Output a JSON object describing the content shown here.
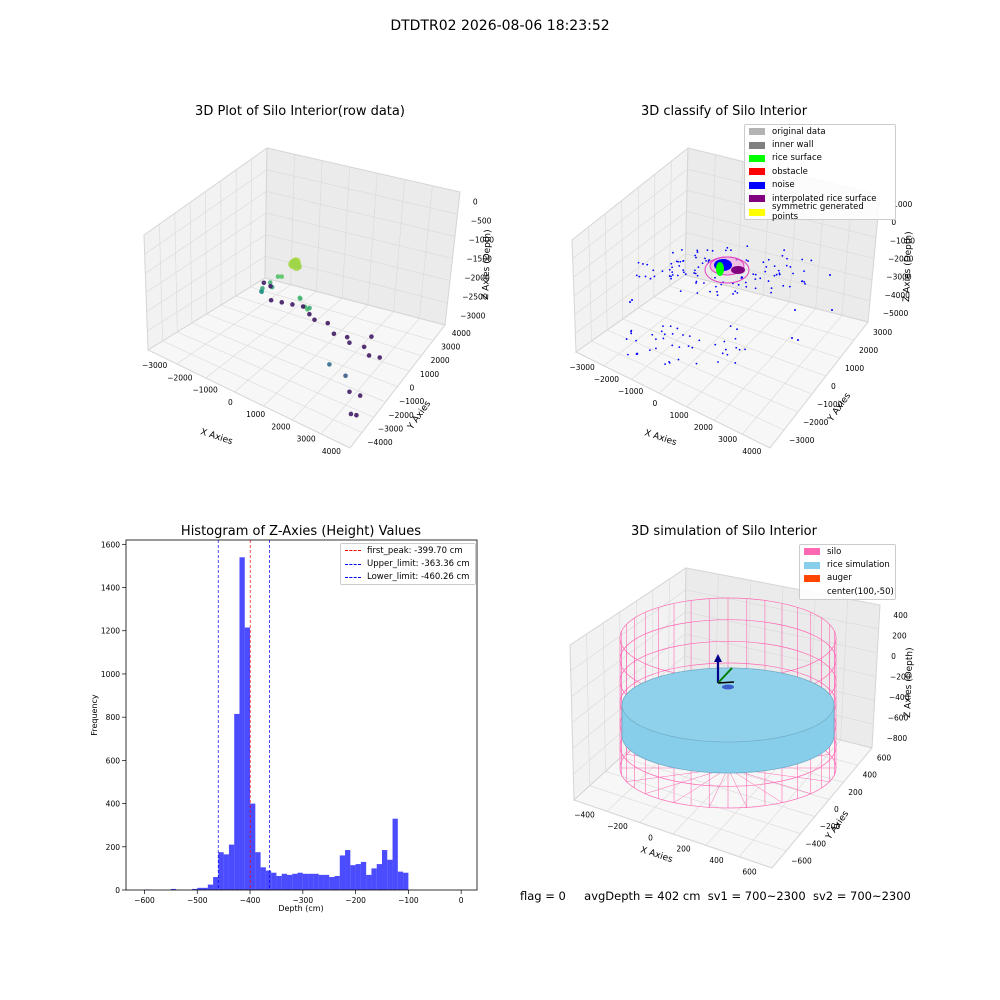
{
  "suptitle": "DTDTR02 2026-08-06 18:23:52",
  "status": {
    "flag": "flag = 0",
    "avg": "avgDepth = 402 cm",
    "sv1": "sv1 = 700~2300",
    "sv2": "sv2 = 700~2300"
  },
  "chart_data": [
    {
      "type": "scatter",
      "title": "3D Plot of Silo Interior(row data)",
      "xlabel": "X Axies",
      "ylabel": "Y Axies",
      "zlabel": "Z Axies (Depth)",
      "xticks": [
        "−3000",
        "−2000",
        "−1000",
        "0",
        "1000",
        "2000",
        "3000",
        "4000"
      ],
      "yticks": [
        "−4000",
        "−3000",
        "−2000",
        "−1000",
        "0",
        "1000",
        "2000",
        "3000",
        "4000"
      ],
      "zticks": [
        "−3000",
        "−2500",
        "−2000",
        "−1500",
        "−1000",
        "−500",
        "0"
      ],
      "xlim": [
        -3500,
        4200
      ],
      "ylim": [
        -4200,
        4200
      ],
      "zlim": [
        -3300,
        100
      ],
      "colormap": "viridis (by depth)",
      "series_note": "points read approximately from the projection",
      "points": [
        {
          "x": 200,
          "y": 300,
          "z": -300
        },
        {
          "x": 150,
          "y": 400,
          "z": -350
        },
        {
          "x": 250,
          "y": 350,
          "z": -380
        },
        {
          "x": 100,
          "y": 200,
          "z": -400
        },
        {
          "x": 300,
          "y": 250,
          "z": -420
        },
        {
          "x": -200,
          "y": 600,
          "z": -800
        },
        {
          "x": -400,
          "y": 500,
          "z": -900
        },
        {
          "x": -600,
          "y": 700,
          "z": -1100
        },
        {
          "x": -800,
          "y": 900,
          "z": -1300
        },
        {
          "x": -900,
          "y": 800,
          "z": -1450
        },
        {
          "x": -1000,
          "y": 600,
          "z": -1550
        },
        {
          "x": -700,
          "y": 400,
          "z": -1350
        },
        {
          "x": 800,
          "y": 1200,
          "z": -900
        },
        {
          "x": 1100,
          "y": 1400,
          "z": -1000
        },
        {
          "x": 1300,
          "y": 1600,
          "z": -950
        },
        {
          "x": 600,
          "y": 800,
          "z": -1100
        },
        {
          "x": 1000,
          "y": 900,
          "z": -1200
        },
        {
          "x": 2300,
          "y": 2000,
          "z": -2100
        },
        {
          "x": 2800,
          "y": 1800,
          "z": -2300
        },
        {
          "x": 3400,
          "y": 2600,
          "z": -3000
        },
        {
          "x": 3500,
          "y": 2400,
          "z": -3050
        },
        {
          "x": 2600,
          "y": 1200,
          "z": -3000
        },
        {
          "x": 2900,
          "y": 1000,
          "z": -3050
        },
        {
          "x": -3000,
          "y": -3200,
          "z": -3000
        },
        {
          "x": -2800,
          "y": -3300,
          "z": -3050
        },
        {
          "x": -2300,
          "y": -2400,
          "z": -3050
        },
        {
          "x": -2000,
          "y": -2600,
          "z": -3050
        },
        {
          "x": -1700,
          "y": -2800,
          "z": -3050
        },
        {
          "x": -1400,
          "y": -3000,
          "z": -3050
        },
        {
          "x": -1000,
          "y": -2700,
          "z": -3050
        },
        {
          "x": -700,
          "y": -2500,
          "z": -3050
        },
        {
          "x": -300,
          "y": -2700,
          "z": -3050
        },
        {
          "x": 200,
          "y": -2200,
          "z": -3050
        },
        {
          "x": 600,
          "y": -2400,
          "z": -3050
        },
        {
          "x": 900,
          "y": -2000,
          "z": -3000
        },
        {
          "x": 1300,
          "y": -2300,
          "z": -3050
        },
        {
          "x": 1700,
          "y": -1900,
          "z": -3050
        },
        {
          "x": 2000,
          "y": -2100,
          "z": -3050
        },
        {
          "x": 1100,
          "y": -3200,
          "z": -3050
        }
      ]
    },
    {
      "type": "scatter",
      "title": "3D classify of Silo Interior",
      "xlabel": "X Axies",
      "ylabel": "Y Axies",
      "zlabel": "Z Axies (Depth)",
      "xticks": [
        "−3000",
        "−2000",
        "−1000",
        "0",
        "1000",
        "2000",
        "3000",
        "4000"
      ],
      "yticks": [
        "−3000",
        "−2000",
        "−1000",
        "0",
        "1000",
        "2000",
        "3000"
      ],
      "zticks": [
        "−5000",
        "−4000",
        "−3000",
        "−2000",
        "−1000",
        "0",
        "1000"
      ],
      "xlim": [
        -3500,
        4200
      ],
      "ylim": [
        -3500,
        3500
      ],
      "zlim": [
        -5200,
        1300
      ],
      "legend_position": "top-right",
      "series": [
        {
          "name": "original data",
          "color": "#b3b3b3"
        },
        {
          "name": "inner wall",
          "color": "#808080"
        },
        {
          "name": "rice surface",
          "color": "#00ff00"
        },
        {
          "name": "obstacle",
          "color": "#ff0000"
        },
        {
          "name": "noise",
          "color": "#0000ff"
        },
        {
          "name": "interpolated rice surface",
          "color": "#800080"
        },
        {
          "name": "symmetric generated points",
          "color": "#ffff00"
        }
      ]
    },
    {
      "type": "bar",
      "title": "Histogram of Z-Axies (Height) Values",
      "xlabel": "Depth (cm)",
      "ylabel": "Frequency",
      "xlim": [
        -635,
        30
      ],
      "ylim": [
        0,
        1620
      ],
      "xticks": [
        "−600",
        "−500",
        "−400",
        "−300",
        "−200",
        "−100",
        "0"
      ],
      "yticks": [
        "0",
        "200",
        "400",
        "600",
        "800",
        "1000",
        "1200",
        "1400",
        "1600"
      ],
      "bar_color": "#0000ff",
      "bin_edges_start": -600,
      "bin_width": 10,
      "values": [
        2,
        0,
        0,
        0,
        0,
        5,
        0,
        0,
        0,
        5,
        10,
        10,
        25,
        60,
        175,
        165,
        210,
        815,
        1540,
        1215,
        400,
        175,
        105,
        90,
        80,
        65,
        75,
        70,
        75,
        80,
        75,
        75,
        75,
        70,
        70,
        60,
        65,
        160,
        185,
        115,
        120,
        130,
        70,
        100,
        120,
        185,
        140,
        330,
        85,
        80
      ],
      "vlines": [
        {
          "name": "first_peak: -399.70 cm",
          "x": -399.7,
          "color": "#ff0000"
        },
        {
          "name": "Upper_limit: -363.36 cm",
          "x": -363.36,
          "color": "#0000ff"
        },
        {
          "name": "Lower_limit: -460.26 cm",
          "x": -460.26,
          "color": "#0000ff"
        }
      ],
      "legend_position": "top-right"
    },
    {
      "type": "scatter",
      "title": "3D simulation of Silo Interior",
      "xlabel": "X Axies",
      "ylabel": "Y Axies",
      "zlabel": "Z Axies (Depth)",
      "xticks": [
        "−400",
        "−200",
        "0",
        "200",
        "400",
        "600"
      ],
      "yticks": [
        "−600",
        "−400",
        "−200",
        "0",
        "200",
        "400",
        "600"
      ],
      "zticks": [
        "−800",
        "−600",
        "−400",
        "−200",
        "0",
        "200",
        "400"
      ],
      "xlim": [
        -500,
        700
      ],
      "ylim": [
        -700,
        700
      ],
      "zlim": [
        -900,
        450
      ],
      "legend_position": "top-right",
      "series": [
        {
          "name": "silo",
          "color": "#ff69b4"
        },
        {
          "name": "rice simulation",
          "color": "#87ceeb"
        },
        {
          "name": "auger",
          "color": "#ff4500"
        },
        {
          "name": "center(100,-50)",
          "color": ""
        }
      ]
    }
  ]
}
